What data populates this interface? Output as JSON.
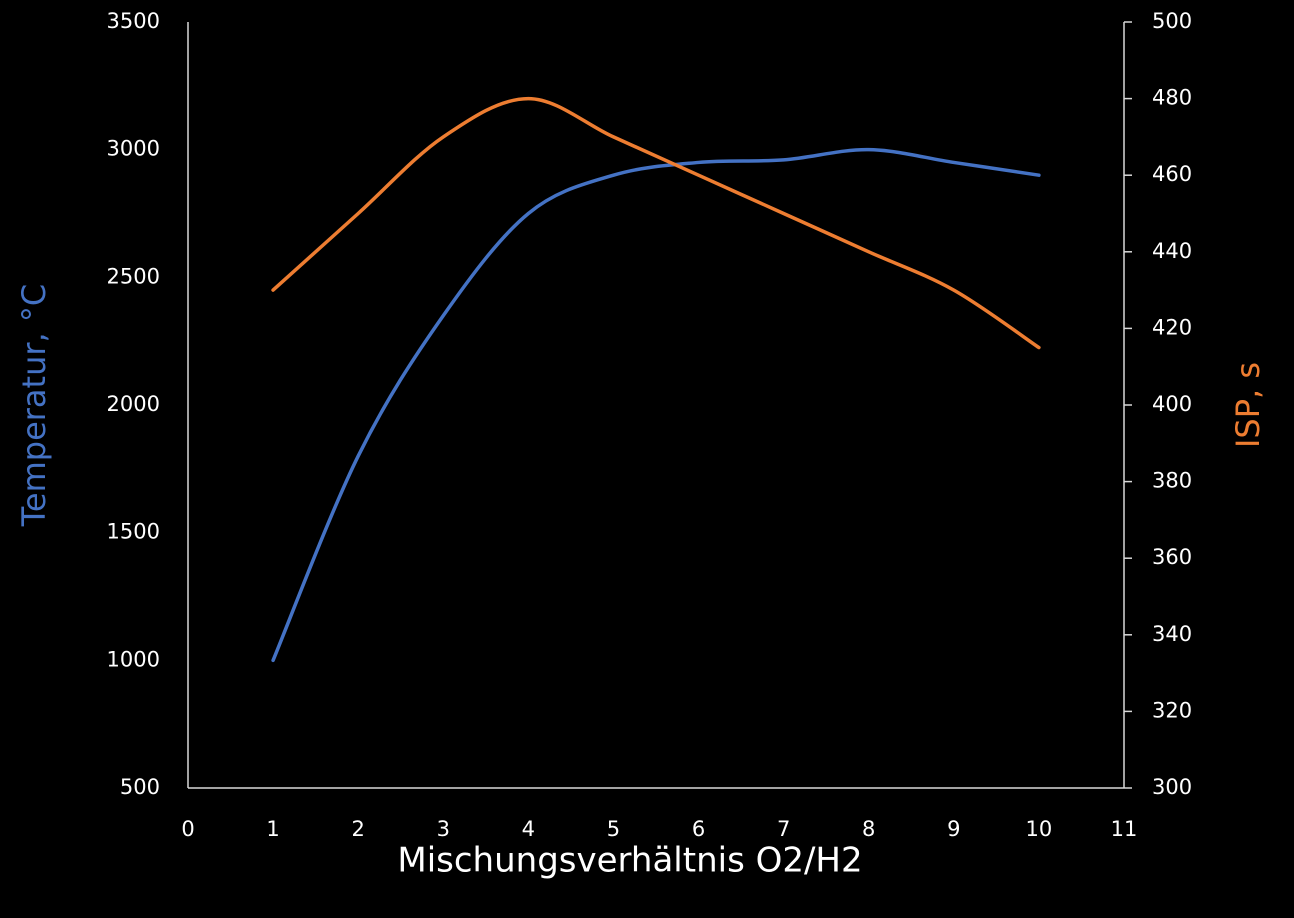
{
  "chart_data": {
    "type": "line",
    "x_label": "Mischungsverhältnis O2/H2",
    "y_label": "Temperatur, °C",
    "y2_label": "ISP, s",
    "x": [
      1,
      2,
      3,
      4,
      5,
      6,
      7,
      8,
      9,
      10
    ],
    "xlim": [
      0,
      11
    ],
    "xticks": [
      0,
      1,
      2,
      3,
      4,
      5,
      6,
      7,
      8,
      9,
      10,
      11
    ],
    "ylim": [
      500,
      3500
    ],
    "yticks": [
      500,
      1000,
      1500,
      2000,
      2500,
      3000,
      3500
    ],
    "y2lim": [
      300,
      500
    ],
    "y2ticks": [
      300,
      320,
      340,
      360,
      380,
      400,
      420,
      440,
      460,
      480,
      500
    ],
    "smooth": true,
    "series": [
      {
        "name": "Temperatur, °C",
        "color": "#4472c4",
        "values": [
          1000,
          1800,
          2350,
          2750,
          2900,
          2950,
          2960,
          3000,
          2950,
          2900
        ]
      },
      {
        "name": "ISP, s",
        "color": "#ed7d31",
        "axis": "y2",
        "values": [
          430,
          450,
          470,
          480,
          470,
          460,
          450,
          440,
          430,
          415
        ]
      }
    ]
  }
}
